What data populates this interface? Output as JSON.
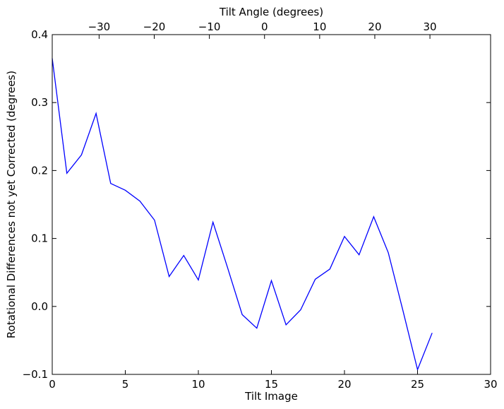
{
  "chart_data": {
    "type": "line",
    "title": "",
    "xlabel": "Tilt Image",
    "ylabel": "Rotational Differences not yet Corrected (degrees)",
    "x2label": "Tilt Angle (degrees)",
    "xlim": [
      0,
      30
    ],
    "ylim": [
      -0.1,
      0.4
    ],
    "x2lim": [
      -38.5,
      41
    ],
    "xticks": [
      0,
      5,
      10,
      15,
      20,
      25,
      30
    ],
    "xtick_labels": [
      "0",
      "5",
      "10",
      "15",
      "20",
      "25",
      "30"
    ],
    "yticks": [
      -0.1,
      0.0,
      0.1,
      0.2,
      0.3,
      0.4
    ],
    "ytick_labels": [
      "−0.1",
      "0.0",
      "0.1",
      "0.2",
      "0.3",
      "0.4"
    ],
    "x2ticks": [
      -30,
      -20,
      -10,
      0,
      10,
      20,
      30
    ],
    "x2tick_labels": [
      "−30",
      "−20",
      "−10",
      "0",
      "10",
      "20",
      "30"
    ],
    "grid": false,
    "series": [
      {
        "color": "#0000ff",
        "x": [
          0,
          1,
          2,
          3,
          4,
          5,
          6,
          7,
          8,
          9,
          10,
          11,
          12,
          13,
          14,
          15,
          16,
          17,
          18,
          19,
          20,
          21,
          22,
          23,
          24,
          25,
          26
        ],
        "y": [
          0.365,
          0.196,
          0.223,
          0.284,
          0.181,
          0.171,
          0.155,
          0.127,
          0.044,
          0.075,
          0.039,
          0.124,
          0.057,
          -0.012,
          -0.032,
          0.038,
          -0.027,
          -0.005,
          0.04,
          0.055,
          0.103,
          0.076,
          0.132,
          0.079,
          -0.006,
          -0.093,
          -0.039
        ]
      }
    ]
  }
}
